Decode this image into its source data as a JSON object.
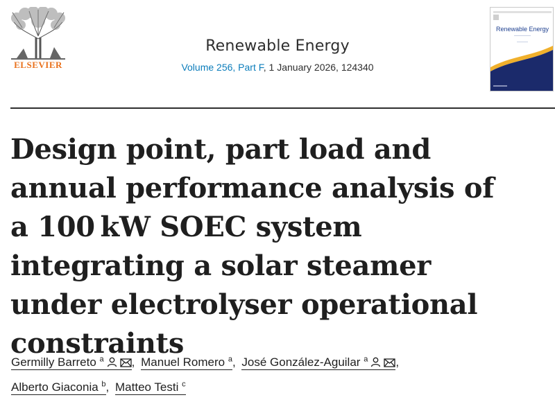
{
  "header": {
    "publisher": "ELSEVIER",
    "journal_title": "Renewable Energy",
    "issue_link": "Volume 256, Part F",
    "issue_rest": ", 1 January 2026, 124340",
    "cover_title": "Renewable Energy",
    "colors": {
      "publisher_orange": "#e9711c",
      "link_blue": "#0c7dbb",
      "cover_navy": "#1b2a6b",
      "cover_gold": "#f0b02c"
    }
  },
  "article": {
    "title": "Design point, part load and annual performance analysis of a 100 kW SOEC system integrating a solar steamer under electrolyser operational constraints"
  },
  "authors": [
    {
      "name": "Germilly Barreto",
      "aff": "a",
      "icons": [
        "person-icon",
        "email-icon"
      ]
    },
    {
      "name": "Manuel Romero",
      "aff": "a",
      "icons": []
    },
    {
      "name": "José González-Aguilar",
      "aff": "a",
      "icons": [
        "person-icon",
        "email-icon"
      ]
    },
    {
      "name": "Alberto Giaconia",
      "aff": "b",
      "icons": []
    },
    {
      "name": "Matteo Testi",
      "aff": "c",
      "icons": []
    }
  ]
}
